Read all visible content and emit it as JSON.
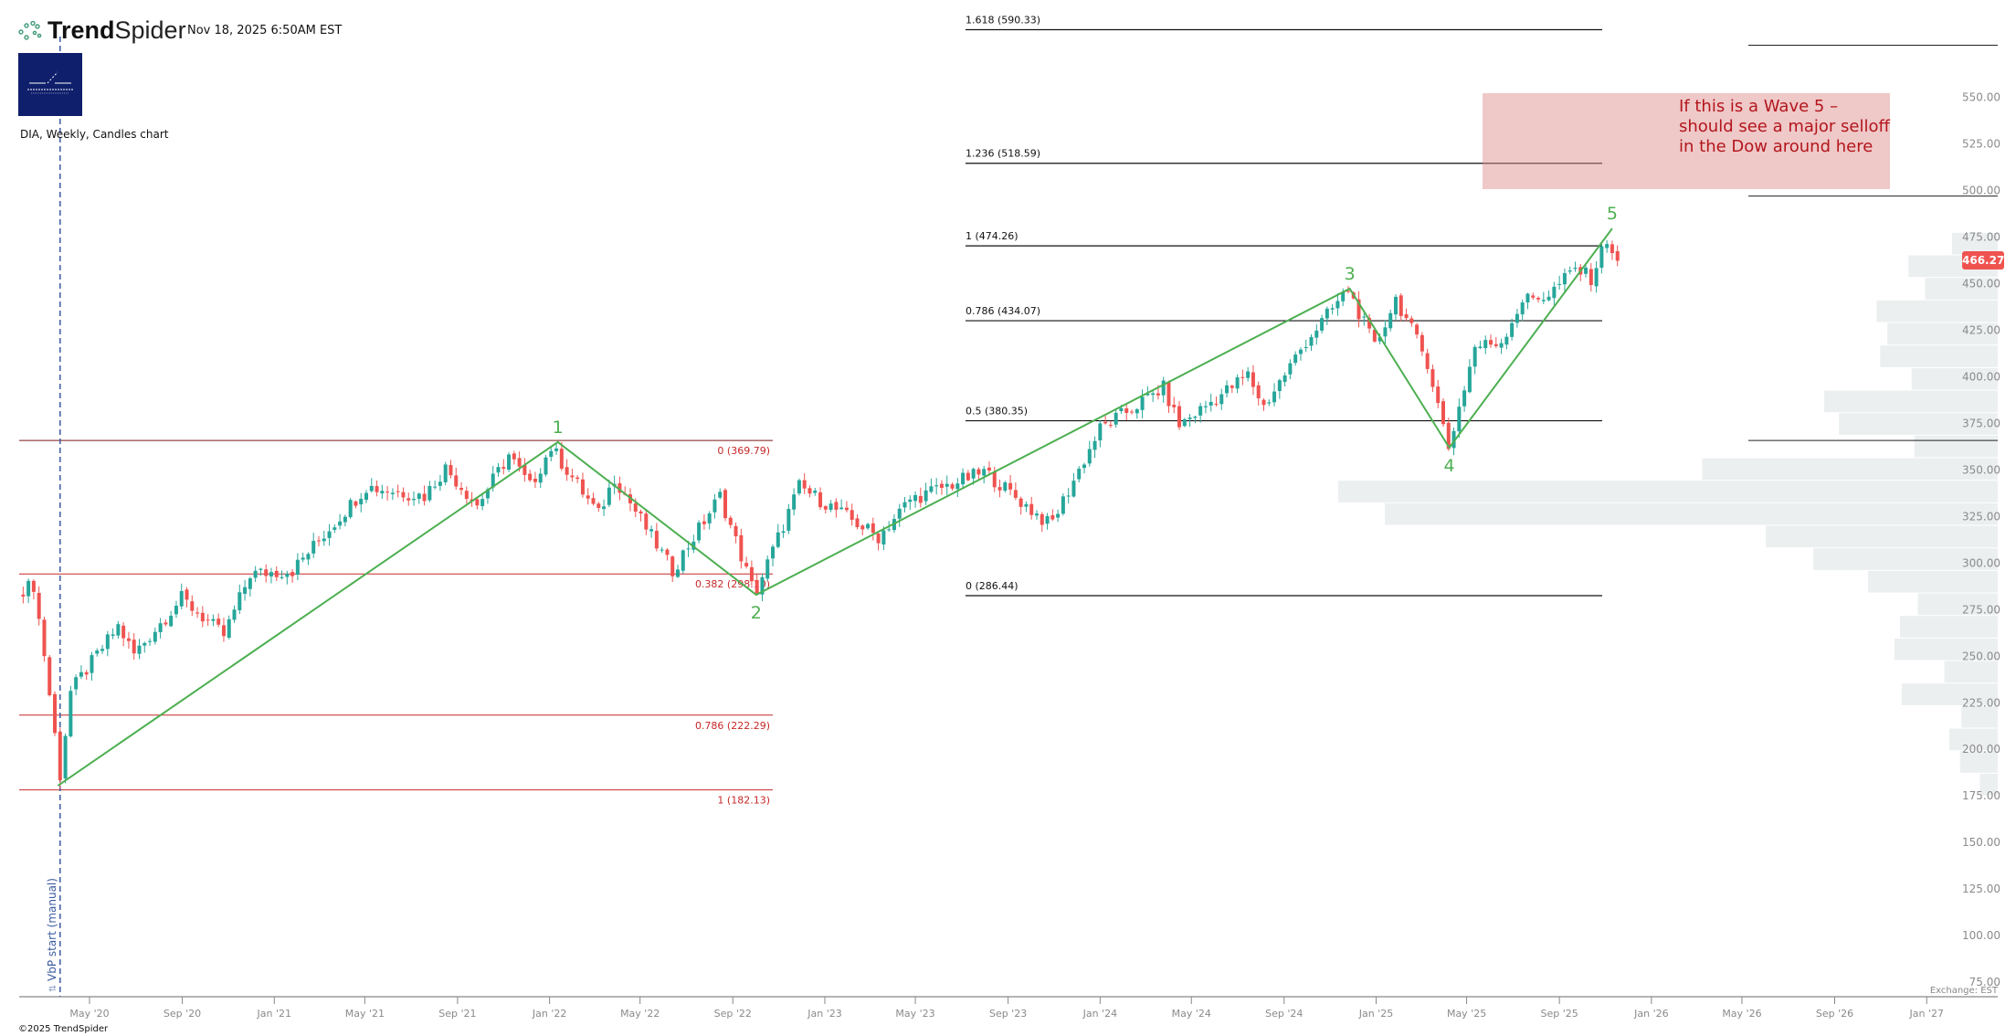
{
  "header": {
    "brand_bold": "Trend",
    "brand_light": "Spider",
    "timestamp": "Nov 18, 2025 6:50AM EST",
    "symbol_line": "DIA, Weekly, Candles chart"
  },
  "footer": {
    "copyright": "©2025 TrendSpider",
    "exchange": "Exchange: EST"
  },
  "annotation": {
    "text": "If this is a Wave 5 –\nshould see a major selloff\nin the Dow around here",
    "box_color": "#e9b4b4",
    "text_color": "#b3161c"
  },
  "vbp_marker": {
    "label": "VbP start (manual)",
    "date": "2020-03-23"
  },
  "colors": {
    "up": "#26a69a",
    "down": "#ef5350",
    "wave": "#4caf50",
    "fib_left": "#c62828",
    "fib_right": "#111111",
    "volume": "#eceff0"
  },
  "chart_data": {
    "type": "candlestick",
    "title": "DIA, Weekly, Candles chart",
    "last_price": "466.27",
    "y_ticks": [
      "75.00",
      "100.00",
      "125.00",
      "150.00",
      "175.00",
      "200.00",
      "225.00",
      "250.00",
      "275.00",
      "300.00",
      "325.00",
      "350.00",
      "375.00",
      "400.00",
      "425.00",
      "450.00",
      "475.00",
      "500.00",
      "525.00",
      "550.00"
    ],
    "x_ticks": [
      {
        "label": "May '20",
        "date": "2020-05-01"
      },
      {
        "label": "Sep '20",
        "date": "2020-09-01"
      },
      {
        "label": "Jan '21",
        "date": "2021-01-01"
      },
      {
        "label": "May '21",
        "date": "2021-05-01"
      },
      {
        "label": "Sep '21",
        "date": "2021-09-01"
      },
      {
        "label": "Jan '22",
        "date": "2022-01-01"
      },
      {
        "label": "May '22",
        "date": "2022-05-01"
      },
      {
        "label": "Sep '22",
        "date": "2022-09-01"
      },
      {
        "label": "Jan '23",
        "date": "2023-01-01"
      },
      {
        "label": "May '23",
        "date": "2023-05-01"
      },
      {
        "label": "Sep '23",
        "date": "2023-09-01"
      },
      {
        "label": "Jan '24",
        "date": "2024-01-01"
      },
      {
        "label": "May '24",
        "date": "2024-05-01"
      },
      {
        "label": "Sep '24",
        "date": "2024-09-01"
      },
      {
        "label": "Jan '25",
        "date": "2025-01-01"
      },
      {
        "label": "May '25",
        "date": "2025-05-01"
      },
      {
        "label": "Sep '25",
        "date": "2025-09-01"
      },
      {
        "label": "Jan '26",
        "date": "2026-01-01"
      },
      {
        "label": "May '26",
        "date": "2026-05-01"
      },
      {
        "label": "Sep '26",
        "date": "2026-09-01"
      },
      {
        "label": "Jan '27",
        "date": "2027-01-01"
      }
    ],
    "price_path": [
      [
        "2020-02-03",
        290
      ],
      [
        "2020-02-17",
        292
      ],
      [
        "2020-03-02",
        255
      ],
      [
        "2020-03-23",
        190
      ],
      [
        "2020-04-06",
        235
      ],
      [
        "2020-06-08",
        270
      ],
      [
        "2020-06-29",
        255
      ],
      [
        "2020-08-31",
        285
      ],
      [
        "2020-10-26",
        265
      ],
      [
        "2020-11-30",
        298
      ],
      [
        "2021-01-25",
        300
      ],
      [
        "2021-05-03",
        345
      ],
      [
        "2021-07-19",
        340
      ],
      [
        "2021-08-16",
        355
      ],
      [
        "2021-09-27",
        335
      ],
      [
        "2021-11-08",
        362
      ],
      [
        "2021-12-06",
        345
      ],
      [
        "2022-01-03",
        366
      ],
      [
        "2022-03-07",
        330
      ],
      [
        "2022-03-28",
        350
      ],
      [
        "2022-06-13",
        300
      ],
      [
        "2022-08-15",
        340
      ],
      [
        "2022-09-30",
        287
      ],
      [
        "2022-11-28",
        345
      ],
      [
        "2023-03-13",
        318
      ],
      [
        "2023-04-24",
        338
      ],
      [
        "2023-08-01",
        353
      ],
      [
        "2023-10-27",
        324
      ],
      [
        "2024-01-01",
        376
      ],
      [
        "2024-03-25",
        398
      ],
      [
        "2024-04-15",
        378
      ],
      [
        "2024-07-15",
        405
      ],
      [
        "2024-08-05",
        388
      ],
      [
        "2024-09-30",
        423
      ],
      [
        "2024-11-25",
        451
      ],
      [
        "2024-12-30",
        420
      ],
      [
        "2025-01-27",
        446
      ],
      [
        "2025-03-10",
        412
      ],
      [
        "2025-04-07",
        366
      ],
      [
        "2025-05-12",
        420
      ],
      [
        "2025-06-16",
        423
      ],
      [
        "2025-07-14",
        445
      ],
      [
        "2025-08-18",
        448
      ],
      [
        "2025-09-22",
        462
      ],
      [
        "2025-10-13",
        457
      ],
      [
        "2025-11-03",
        478
      ],
      [
        "2025-11-10",
        472
      ],
      [
        "2025-11-17",
        466.27
      ]
    ],
    "waves": [
      {
        "label": "",
        "date": "2020-03-20",
        "price": 184.4,
        "pos": "below"
      },
      {
        "label": "1",
        "date": "2022-01-12",
        "price": 368.9,
        "pos": "above"
      },
      {
        "label": "2",
        "date": "2022-10-02",
        "price": 286.9,
        "pos": "below"
      },
      {
        "label": "3",
        "date": "2024-11-27",
        "price": 451.3,
        "pos": "above"
      },
      {
        "label": "4",
        "date": "2025-04-08",
        "price": 365.9,
        "pos": "below"
      },
      {
        "label": "5",
        "date": "2025-11-10",
        "price": 483.6,
        "pos": "above"
      }
    ],
    "fib_left": [
      {
        "label": "0 (369.79)",
        "price": 369.79
      },
      {
        "label": "0.382 (298.10)",
        "price": 298.1
      },
      {
        "label": "0.786 (222.29)",
        "price": 222.29
      },
      {
        "label": "1 (182.13)",
        "price": 182.13
      }
    ],
    "fib_right": [
      {
        "label": "1.618 (590.33)",
        "price": 590.33
      },
      {
        "label": "1.236 (518.59)",
        "price": 518.59
      },
      {
        "label": "1 (474.26)",
        "price": 474.26
      },
      {
        "label": "0.786 (434.07)",
        "price": 434.07
      },
      {
        "label": "0.5 (380.35)",
        "price": 380.35
      },
      {
        "label": "0 (286.44)",
        "price": 286.44
      }
    ],
    "right_levels": [
      582,
      501,
      369.79
    ],
    "volume_profile": {
      "top_price": 481.5,
      "bin_size": 12.1,
      "values": [
        102,
        199,
        162,
        270,
        246,
        262,
        192,
        387,
        354,
        186,
        659,
        1470,
        1366,
        517,
        411,
        289,
        178,
        218,
        230,
        119,
        214,
        81,
        108,
        84,
        40
      ]
    }
  }
}
